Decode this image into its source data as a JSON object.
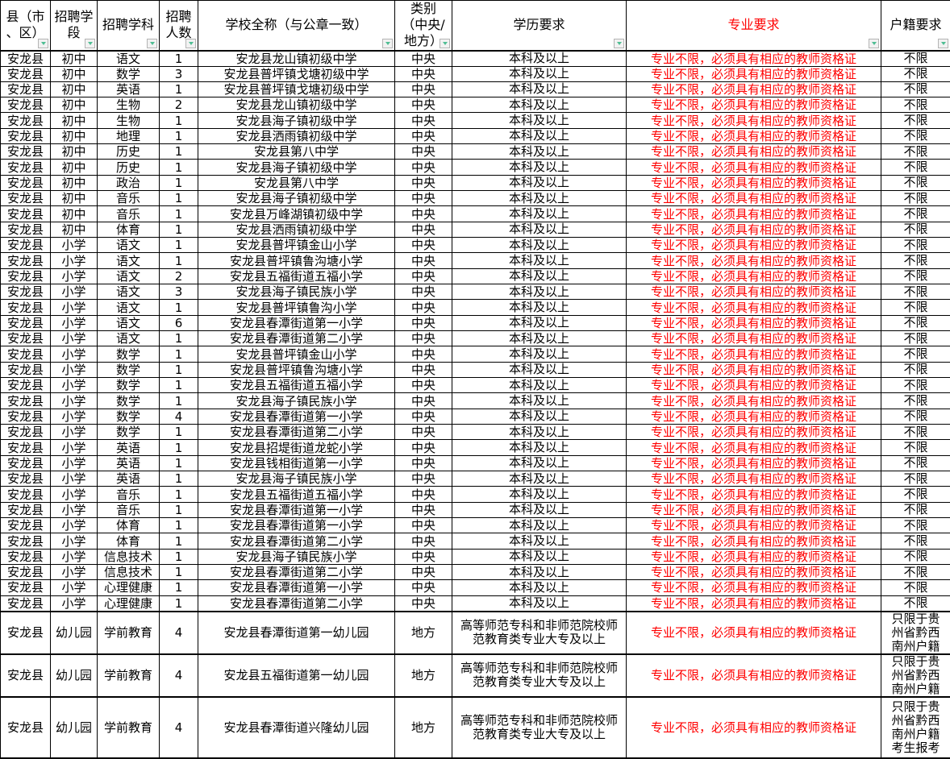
{
  "colors": {
    "grid": "#000000",
    "text": "#000000",
    "accent_red": "#FF0000",
    "filter_button_bg": "#F2F2F2",
    "filter_button_border": "#B4B4B4",
    "filter_arrow": "#4FBE93",
    "background": "#FFFFFF"
  },
  "table": {
    "columns": [
      {
        "id": "county",
        "label": "县（市\n、区）"
      },
      {
        "id": "stage",
        "label": "招聘学\n段"
      },
      {
        "id": "subject",
        "label": "招聘学科"
      },
      {
        "id": "count",
        "label": "招聘\n人数"
      },
      {
        "id": "school",
        "label": "学校全称（与公章一致）"
      },
      {
        "id": "category",
        "label": "类别\n（中央/\n地方）"
      },
      {
        "id": "education",
        "label": "学历要求"
      },
      {
        "id": "major",
        "label": "专业要求",
        "accent": true
      },
      {
        "id": "residence",
        "label": "户籍要求"
      }
    ],
    "rows": [
      [
        "安龙县",
        "初中",
        "语文",
        "1",
        "安龙县龙山镇初级中学",
        "中央",
        "本科及以上",
        "专业不限，必须具有相应的教师资格证",
        "不限"
      ],
      [
        "安龙县",
        "初中",
        "数学",
        "3",
        "安龙县普坪镇戈塘初级中学",
        "中央",
        "本科及以上",
        "专业不限，必须具有相应的教师资格证",
        "不限"
      ],
      [
        "安龙县",
        "初中",
        "英语",
        "1",
        "安龙县普坪镇戈塘初级中学",
        "中央",
        "本科及以上",
        "专业不限，必须具有相应的教师资格证",
        "不限"
      ],
      [
        "安龙县",
        "初中",
        "生物",
        "2",
        "安龙县龙山镇初级中学",
        "中央",
        "本科及以上",
        "专业不限，必须具有相应的教师资格证",
        "不限"
      ],
      [
        "安龙县",
        "初中",
        "生物",
        "1",
        "安龙县海子镇初级中学",
        "中央",
        "本科及以上",
        "专业不限，必须具有相应的教师资格证",
        "不限"
      ],
      [
        "安龙县",
        "初中",
        "地理",
        "1",
        "安龙县洒雨镇初级中学",
        "中央",
        "本科及以上",
        "专业不限，必须具有相应的教师资格证",
        "不限"
      ],
      [
        "安龙县",
        "初中",
        "历史",
        "1",
        "安龙县第八中学",
        "中央",
        "本科及以上",
        "专业不限，必须具有相应的教师资格证",
        "不限"
      ],
      [
        "安龙县",
        "初中",
        "历史",
        "1",
        "安龙县海子镇初级中学",
        "中央",
        "本科及以上",
        "专业不限，必须具有相应的教师资格证",
        "不限"
      ],
      [
        "安龙县",
        "初中",
        "政治",
        "1",
        "安龙县第八中学",
        "中央",
        "本科及以上",
        "专业不限，必须具有相应的教师资格证",
        "不限"
      ],
      [
        "安龙县",
        "初中",
        "音乐",
        "1",
        "安龙县海子镇初级中学",
        "中央",
        "本科及以上",
        "专业不限，必须具有相应的教师资格证",
        "不限"
      ],
      [
        "安龙县",
        "初中",
        "音乐",
        "1",
        "安龙县万峰湖镇初级中学",
        "中央",
        "本科及以上",
        "专业不限，必须具有相应的教师资格证",
        "不限"
      ],
      [
        "安龙县",
        "初中",
        "体育",
        "1",
        "安龙县洒雨镇初级中学",
        "中央",
        "本科及以上",
        "专业不限，必须具有相应的教师资格证",
        "不限"
      ],
      [
        "安龙县",
        "小学",
        "语文",
        "1",
        "安龙县普坪镇金山小学",
        "中央",
        "本科及以上",
        "专业不限，必须具有相应的教师资格证",
        "不限"
      ],
      [
        "安龙县",
        "小学",
        "语文",
        "1",
        "安龙县普坪镇鲁沟塘小学",
        "中央",
        "本科及以上",
        "专业不限，必须具有相应的教师资格证",
        "不限"
      ],
      [
        "安龙县",
        "小学",
        "语文",
        "2",
        "安龙县五福街道五福小学",
        "中央",
        "本科及以上",
        "专业不限，必须具有相应的教师资格证",
        "不限"
      ],
      [
        "安龙县",
        "小学",
        "语文",
        "3",
        "安龙县海子镇民族小学",
        "中央",
        "本科及以上",
        "专业不限，必须具有相应的教师资格证",
        "不限"
      ],
      [
        "安龙县",
        "小学",
        "语文",
        "1",
        "安龙县普坪镇鲁沟小学",
        "中央",
        "本科及以上",
        "专业不限，必须具有相应的教师资格证",
        "不限"
      ],
      [
        "安龙县",
        "小学",
        "语文",
        "6",
        "安龙县春潭街道第一小学",
        "中央",
        "本科及以上",
        "专业不限，必须具有相应的教师资格证",
        "不限"
      ],
      [
        "安龙县",
        "小学",
        "语文",
        "1",
        "安龙县春潭街道第二小学",
        "中央",
        "本科及以上",
        "专业不限，必须具有相应的教师资格证",
        "不限"
      ],
      [
        "安龙县",
        "小学",
        "数学",
        "1",
        "安龙县普坪镇金山小学",
        "中央",
        "本科及以上",
        "专业不限，必须具有相应的教师资格证",
        "不限"
      ],
      [
        "安龙县",
        "小学",
        "数学",
        "1",
        "安龙县普坪镇鲁沟塘小学",
        "中央",
        "本科及以上",
        "专业不限，必须具有相应的教师资格证",
        "不限"
      ],
      [
        "安龙县",
        "小学",
        "数学",
        "1",
        "安龙县五福街道五福小学",
        "中央",
        "本科及以上",
        "专业不限，必须具有相应的教师资格证",
        "不限"
      ],
      [
        "安龙县",
        "小学",
        "数学",
        "1",
        "安龙县海子镇民族小学",
        "中央",
        "本科及以上",
        "专业不限，必须具有相应的教师资格证",
        "不限"
      ],
      [
        "安龙县",
        "小学",
        "数学",
        "4",
        "安龙县春潭街道第一小学",
        "中央",
        "本科及以上",
        "专业不限，必须具有相应的教师资格证",
        "不限"
      ],
      [
        "安龙县",
        "小学",
        "数学",
        "1",
        "安龙县春潭街道第二小学",
        "中央",
        "本科及以上",
        "专业不限，必须具有相应的教师资格证",
        "不限"
      ],
      [
        "安龙县",
        "小学",
        "英语",
        "1",
        "安龙县招堤街道龙蛇小学",
        "中央",
        "本科及以上",
        "专业不限，必须具有相应的教师资格证",
        "不限"
      ],
      [
        "安龙县",
        "小学",
        "英语",
        "1",
        "安龙县钱相街道第一小学",
        "中央",
        "本科及以上",
        "专业不限，必须具有相应的教师资格证",
        "不限"
      ],
      [
        "安龙县",
        "小学",
        "英语",
        "1",
        "安龙县海子镇民族小学",
        "中央",
        "本科及以上",
        "专业不限，必须具有相应的教师资格证",
        "不限"
      ],
      [
        "安龙县",
        "小学",
        "音乐",
        "1",
        "安龙县五福街道五福小学",
        "中央",
        "本科及以上",
        "专业不限，必须具有相应的教师资格证",
        "不限"
      ],
      [
        "安龙县",
        "小学",
        "音乐",
        "1",
        "安龙县春潭街道第一小学",
        "中央",
        "本科及以上",
        "专业不限，必须具有相应的教师资格证",
        "不限"
      ],
      [
        "安龙县",
        "小学",
        "体育",
        "1",
        "安龙县春潭街道第一小学",
        "中央",
        "本科及以上",
        "专业不限，必须具有相应的教师资格证",
        "不限"
      ],
      [
        "安龙县",
        "小学",
        "体育",
        "1",
        "安龙县春潭街道第二小学",
        "中央",
        "本科及以上",
        "专业不限，必须具有相应的教师资格证",
        "不限"
      ],
      [
        "安龙县",
        "小学",
        "信息技术",
        "1",
        "安龙县海子镇民族小学",
        "中央",
        "本科及以上",
        "专业不限，必须具有相应的教师资格证",
        "不限"
      ],
      [
        "安龙县",
        "小学",
        "信息技术",
        "1",
        "安龙县春潭街道第二小学",
        "中央",
        "本科及以上",
        "专业不限，必须具有相应的教师资格证",
        "不限"
      ],
      [
        "安龙县",
        "小学",
        "心理健康",
        "1",
        "安龙县春潭街道第一小学",
        "中央",
        "本科及以上",
        "专业不限，必须具有相应的教师资格证",
        "不限"
      ],
      [
        "安龙县",
        "小学",
        "心理健康",
        "1",
        "安龙县春潭街道第二小学",
        "中央",
        "本科及以上",
        "专业不限，必须具有相应的教师资格证",
        "不限"
      ],
      [
        "安龙县",
        "幼儿园",
        "学前教育",
        "4",
        "安龙县春潭街道第一幼儿园",
        "地方",
        "高等师范专科和非师范院校师\n范教育类专业大专及以上",
        "专业不限，必须具有相应的教师资格证",
        "只限于贵\n州省黔西\n南州户籍"
      ],
      [
        "安龙县",
        "幼儿园",
        "学前教育",
        "4",
        "安龙县五福街道第一幼儿园",
        "地方",
        "高等师范专科和非师范院校师\n范教育类专业大专及以上",
        "专业不限，必须具有相应的教师资格证",
        "只限于贵\n州省黔西\n南州户籍"
      ],
      [
        "安龙县",
        "幼儿园",
        "学前教育",
        "4",
        "安龙县春潭街道兴隆幼儿园",
        "地方",
        "高等师范专科和非师范院校师\n范教育类专业大专及以上",
        "专业不限，必须具有相应的教师资格证",
        "只限于贵\n州省黔西\n南州户籍\n考生报考"
      ]
    ]
  }
}
